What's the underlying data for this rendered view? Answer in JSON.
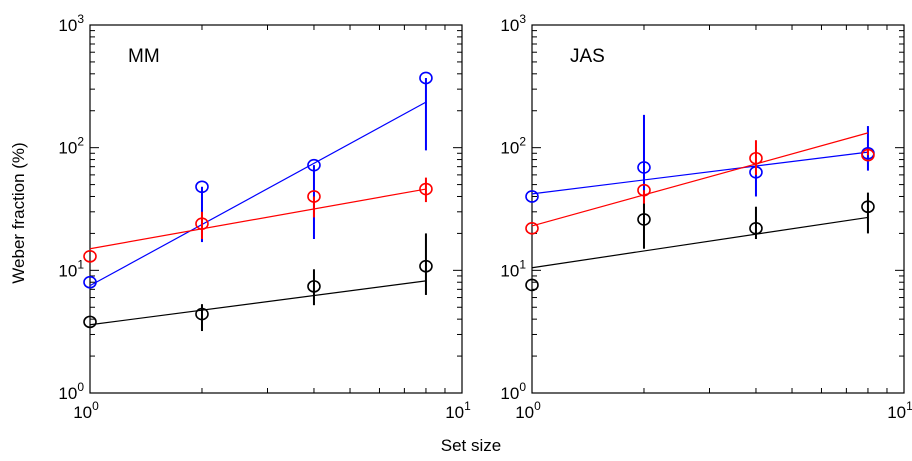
{
  "figure": {
    "ylabel": "Weber fraction (%)",
    "xlabel": "Set size"
  },
  "chart_data": [
    {
      "type": "scatter",
      "title": "MM",
      "xscale": "log",
      "yscale": "log",
      "xlim": [
        1,
        10
      ],
      "ylim": [
        1,
        1000
      ],
      "xticks": [
        {
          "value": 1,
          "base": "10",
          "exp": "0"
        },
        {
          "value": 10,
          "base": "10",
          "exp": "1"
        }
      ],
      "yticks": [
        {
          "value": 1,
          "base": "10",
          "exp": "0"
        },
        {
          "value": 10,
          "base": "10",
          "exp": "1"
        },
        {
          "value": 100,
          "base": "10",
          "exp": "2"
        },
        {
          "value": 1000,
          "base": "10",
          "exp": "3"
        }
      ],
      "series": [
        {
          "color": "#0000ff",
          "x": [
            1,
            2,
            4,
            8
          ],
          "y": [
            8,
            48,
            72,
            370
          ],
          "err_low": [
            8,
            17,
            18,
            95
          ],
          "err_high": [
            8,
            48,
            72,
            370
          ],
          "fit_x": [
            1,
            8
          ],
          "fit_y": [
            7.5,
            235
          ]
        },
        {
          "color": "#ff0000",
          "x": [
            1,
            2,
            4,
            8
          ],
          "y": [
            13,
            24,
            40,
            46
          ],
          "err_low": [
            13,
            18,
            27,
            36
          ],
          "err_high": [
            13,
            30,
            40,
            57
          ],
          "fit_x": [
            1,
            8
          ],
          "fit_y": [
            15,
            46
          ]
        },
        {
          "color": "#000000",
          "x": [
            1,
            2,
            4,
            8
          ],
          "y": [
            3.8,
            4.4,
            7.4,
            10.8
          ],
          "err_low": [
            3.8,
            3.2,
            5.2,
            6.3
          ],
          "err_high": [
            3.8,
            5.3,
            10.2,
            20
          ],
          "fit_x": [
            1,
            8
          ],
          "fit_y": [
            3.6,
            8.2
          ]
        }
      ]
    },
    {
      "type": "scatter",
      "title": "JAS",
      "xscale": "log",
      "yscale": "log",
      "xlim": [
        1,
        10
      ],
      "ylim": [
        1,
        1000
      ],
      "xticks": [
        {
          "value": 1,
          "base": "10",
          "exp": "0"
        },
        {
          "value": 10,
          "base": "10",
          "exp": "1"
        }
      ],
      "yticks": [
        {
          "value": 1,
          "base": "10",
          "exp": "0"
        },
        {
          "value": 10,
          "base": "10",
          "exp": "1"
        },
        {
          "value": 100,
          "base": "10",
          "exp": "2"
        },
        {
          "value": 1000,
          "base": "10",
          "exp": "3"
        }
      ],
      "series": [
        {
          "color": "#0000ff",
          "x": [
            1,
            2,
            4,
            8
          ],
          "y": [
            40,
            69,
            63,
            90
          ],
          "err_low": [
            40,
            35,
            40,
            65
          ],
          "err_high": [
            40,
            185,
            63,
            150
          ],
          "fit_x": [
            1,
            8
          ],
          "fit_y": [
            42,
            92
          ]
        },
        {
          "color": "#ff0000",
          "x": [
            1,
            2,
            4,
            8
          ],
          "y": [
            22,
            45,
            82,
            87
          ],
          "err_low": [
            22,
            32,
            60,
            87
          ],
          "err_high": [
            22,
            45,
            115,
            98
          ],
          "fit_x": [
            1,
            8
          ],
          "fit_y": [
            23,
            132
          ]
        },
        {
          "color": "#000000",
          "x": [
            1,
            2,
            4,
            8
          ],
          "y": [
            7.6,
            26,
            22,
            33
          ],
          "err_low": [
            7.6,
            15,
            18,
            20
          ],
          "err_high": [
            7.6,
            35,
            33,
            43
          ],
          "fit_x": [
            1,
            8
          ],
          "fit_y": [
            10.5,
            27
          ]
        }
      ]
    }
  ]
}
